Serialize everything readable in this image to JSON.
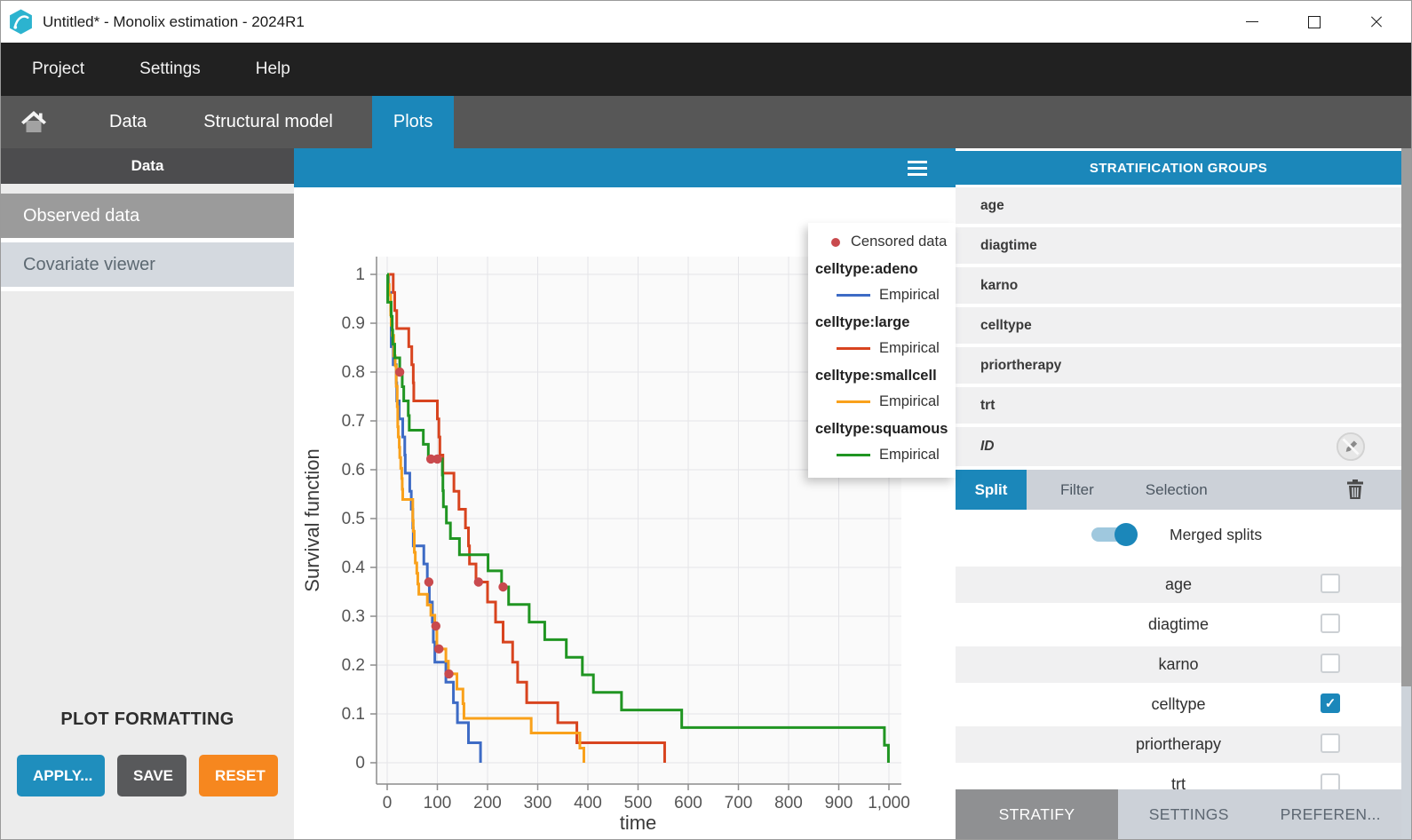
{
  "window": {
    "title": "Untitled* - Monolix estimation - 2024R1",
    "logo_icon": "monolix-logo-icon",
    "controls": [
      {
        "name": "minimize-button",
        "icon": "minimize-icon"
      },
      {
        "name": "maximize-button",
        "icon": "maximize-icon"
      },
      {
        "name": "close-button",
        "icon": "close-icon"
      }
    ]
  },
  "menu": {
    "items": [
      {
        "label": "Project"
      },
      {
        "label": "Settings"
      },
      {
        "label": "Help"
      }
    ]
  },
  "nav_tabs": {
    "home_icon": "home-icon",
    "items": [
      {
        "label": "Data",
        "active": false
      },
      {
        "label": "Structural model",
        "active": false
      },
      {
        "label": "Plots",
        "active": true
      }
    ]
  },
  "sidebar": {
    "header": "Data",
    "items": [
      {
        "label": "Observed data",
        "selected": true
      },
      {
        "label": "Covariate viewer",
        "selected": false
      }
    ],
    "plot_formatting": {
      "title": "PLOT FORMATTING",
      "buttons": [
        {
          "label": "APPLY...",
          "color": "#1f8ebd"
        },
        {
          "label": "SAVE",
          "color": "#58595b"
        },
        {
          "label": "RESET",
          "color": "#f6871f"
        }
      ]
    }
  },
  "plot_panel": {
    "menu_icon": "hamburger-icon"
  },
  "stratification": {
    "header": "STRATIFICATION GROUPS",
    "groups": [
      {
        "label": "age"
      },
      {
        "label": "diagtime"
      },
      {
        "label": "karno"
      },
      {
        "label": "celltype"
      },
      {
        "label": "priortherapy"
      },
      {
        "label": "trt"
      }
    ],
    "id_row": {
      "label": "ID",
      "icon": "no-edit-icon"
    },
    "tabs": [
      {
        "label": "Split",
        "active": true
      },
      {
        "label": "Filter",
        "active": false
      },
      {
        "label": "Selection",
        "active": false
      }
    ],
    "trash_icon": "trash-icon",
    "merged_splits": {
      "label": "Merged splits",
      "on": true
    },
    "split_covariates": [
      {
        "label": "age",
        "checked": false
      },
      {
        "label": "diagtime",
        "checked": false
      },
      {
        "label": "karno",
        "checked": false
      },
      {
        "label": "celltype",
        "checked": true
      },
      {
        "label": "priortherapy",
        "checked": false
      },
      {
        "label": "trt",
        "checked": false
      }
    ],
    "footer_buttons": [
      {
        "label": "STRATIFY",
        "active": true
      },
      {
        "label": "SETTINGS",
        "active": false
      },
      {
        "label": "PREFEREN...",
        "active": false
      }
    ]
  },
  "chart_data": {
    "type": "line",
    "variant": "kaplan-meier-step",
    "title": "",
    "xlabel": "time",
    "ylabel": "Survival function",
    "xlim": [
      0,
      1000
    ],
    "ylim": [
      0,
      1
    ],
    "grid": true,
    "legend_position": "top-right-overlay",
    "xticks": [
      {
        "v": 0,
        "label": "0"
      },
      {
        "v": 100,
        "label": "100"
      },
      {
        "v": 200,
        "label": "200"
      },
      {
        "v": 300,
        "label": "300"
      },
      {
        "v": 400,
        "label": "400"
      },
      {
        "v": 500,
        "label": "500"
      },
      {
        "v": 600,
        "label": "600"
      },
      {
        "v": 700,
        "label": "700"
      },
      {
        "v": 800,
        "label": "800"
      },
      {
        "v": 900,
        "label": "900"
      },
      {
        "v": 1000,
        "label": "1,000"
      }
    ],
    "yticks": [
      {
        "v": 0,
        "label": "0"
      },
      {
        "v": 0.1,
        "label": "0.1"
      },
      {
        "v": 0.2,
        "label": "0.2"
      },
      {
        "v": 0.3,
        "label": "0.3"
      },
      {
        "v": 0.4,
        "label": "0.4"
      },
      {
        "v": 0.5,
        "label": "0.5"
      },
      {
        "v": 0.6,
        "label": "0.6"
      },
      {
        "v": 0.7,
        "label": "0.7"
      },
      {
        "v": 0.8,
        "label": "0.8"
      },
      {
        "v": 0.9,
        "label": "0.9"
      },
      {
        "v": 1,
        "label": "1"
      }
    ],
    "censored": {
      "label": "Censored data",
      "color": "#c94a4e",
      "points": [
        [
          25,
          0.8
        ],
        [
          87,
          0.622
        ],
        [
          100,
          0.622
        ],
        [
          231,
          0.36
        ],
        [
          83,
          0.37
        ],
        [
          97,
          0.28
        ],
        [
          103,
          0.233
        ],
        [
          123,
          0.182
        ],
        [
          182,
          0.37
        ]
      ]
    },
    "series": [
      {
        "group": "celltype:adeno",
        "name": "Empirical",
        "color": "#3d6bc5",
        "points": [
          [
            0,
            1
          ],
          [
            3,
            0.963
          ],
          [
            7,
            0.926
          ],
          [
            8,
            0.852
          ],
          [
            12,
            0.815
          ],
          [
            18,
            0.778
          ],
          [
            19,
            0.741
          ],
          [
            24,
            0.704
          ],
          [
            31,
            0.667
          ],
          [
            35,
            0.63
          ],
          [
            36,
            0.593
          ],
          [
            45,
            0.556
          ],
          [
            48,
            0.519
          ],
          [
            51,
            0.481
          ],
          [
            52,
            0.444
          ],
          [
            73,
            0.407
          ],
          [
            80,
            0.37
          ],
          [
            84,
            0.329
          ],
          [
            90,
            0.288
          ],
          [
            92,
            0.247
          ],
          [
            95,
            0.206
          ],
          [
            117,
            0.165
          ],
          [
            132,
            0.123
          ],
          [
            140,
            0.082
          ],
          [
            162,
            0.041
          ],
          [
            186,
            0
          ]
        ]
      },
      {
        "group": "celltype:large",
        "name": "Empirical",
        "color": "#d8441f",
        "points": [
          [
            0,
            1
          ],
          [
            12,
            0.963
          ],
          [
            15,
            0.926
          ],
          [
            19,
            0.889
          ],
          [
            43,
            0.852
          ],
          [
            49,
            0.815
          ],
          [
            52,
            0.778
          ],
          [
            53,
            0.741
          ],
          [
            100,
            0.704
          ],
          [
            103,
            0.667
          ],
          [
            105,
            0.63
          ],
          [
            111,
            0.593
          ],
          [
            133,
            0.556
          ],
          [
            143,
            0.519
          ],
          [
            156,
            0.481
          ],
          [
            162,
            0.444
          ],
          [
            164,
            0.407
          ],
          [
            177,
            0.37
          ],
          [
            200,
            0.329
          ],
          [
            216,
            0.288
          ],
          [
            231,
            0.247
          ],
          [
            250,
            0.206
          ],
          [
            260,
            0.165
          ],
          [
            278,
            0.123
          ],
          [
            340,
            0.082
          ],
          [
            378,
            0.041
          ],
          [
            553,
            0
          ]
        ]
      },
      {
        "group": "celltype:smallcell",
        "name": "Empirical",
        "color": "#f9a11b",
        "points": [
          [
            0,
            1
          ],
          [
            2,
            0.979
          ],
          [
            4,
            0.958
          ],
          [
            7,
            0.917
          ],
          [
            8,
            0.896
          ],
          [
            10,
            0.875
          ],
          [
            13,
            0.833
          ],
          [
            16,
            0.813
          ],
          [
            18,
            0.771
          ],
          [
            20,
            0.729
          ],
          [
            21,
            0.688
          ],
          [
            22,
            0.667
          ],
          [
            24,
            0.646
          ],
          [
            25,
            0.625
          ],
          [
            27,
            0.603
          ],
          [
            29,
            0.582
          ],
          [
            30,
            0.56
          ],
          [
            31,
            0.539
          ],
          [
            51,
            0.496
          ],
          [
            52,
            0.474
          ],
          [
            54,
            0.431
          ],
          [
            56,
            0.409
          ],
          [
            59,
            0.388
          ],
          [
            61,
            0.366
          ],
          [
            63,
            0.345
          ],
          [
            80,
            0.323
          ],
          [
            87,
            0.302
          ],
          [
            95,
            0.28
          ],
          [
            99,
            0.233
          ],
          [
            117,
            0.208
          ],
          [
            122,
            0.182
          ],
          [
            139,
            0.151
          ],
          [
            151,
            0.121
          ],
          [
            153,
            0.091
          ],
          [
            287,
            0.061
          ],
          [
            384,
            0.03
          ],
          [
            392,
            0
          ]
        ]
      },
      {
        "group": "celltype:squamous",
        "name": "Empirical",
        "color": "#209522",
        "points": [
          [
            0,
            1
          ],
          [
            1,
            0.943
          ],
          [
            8,
            0.914
          ],
          [
            10,
            0.886
          ],
          [
            11,
            0.857
          ],
          [
            15,
            0.829
          ],
          [
            25,
            0.8
          ],
          [
            30,
            0.77
          ],
          [
            33,
            0.741
          ],
          [
            42,
            0.711
          ],
          [
            44,
            0.681
          ],
          [
            72,
            0.652
          ],
          [
            82,
            0.622
          ],
          [
            110,
            0.589
          ],
          [
            111,
            0.557
          ],
          [
            112,
            0.524
          ],
          [
            118,
            0.491
          ],
          [
            126,
            0.459
          ],
          [
            144,
            0.426
          ],
          [
            201,
            0.393
          ],
          [
            228,
            0.36
          ],
          [
            242,
            0.324
          ],
          [
            283,
            0.288
          ],
          [
            314,
            0.252
          ],
          [
            357,
            0.216
          ],
          [
            389,
            0.18
          ],
          [
            411,
            0.144
          ],
          [
            467,
            0.108
          ],
          [
            587,
            0.072
          ],
          [
            991,
            0.036
          ],
          [
            999,
            0
          ]
        ]
      }
    ]
  }
}
